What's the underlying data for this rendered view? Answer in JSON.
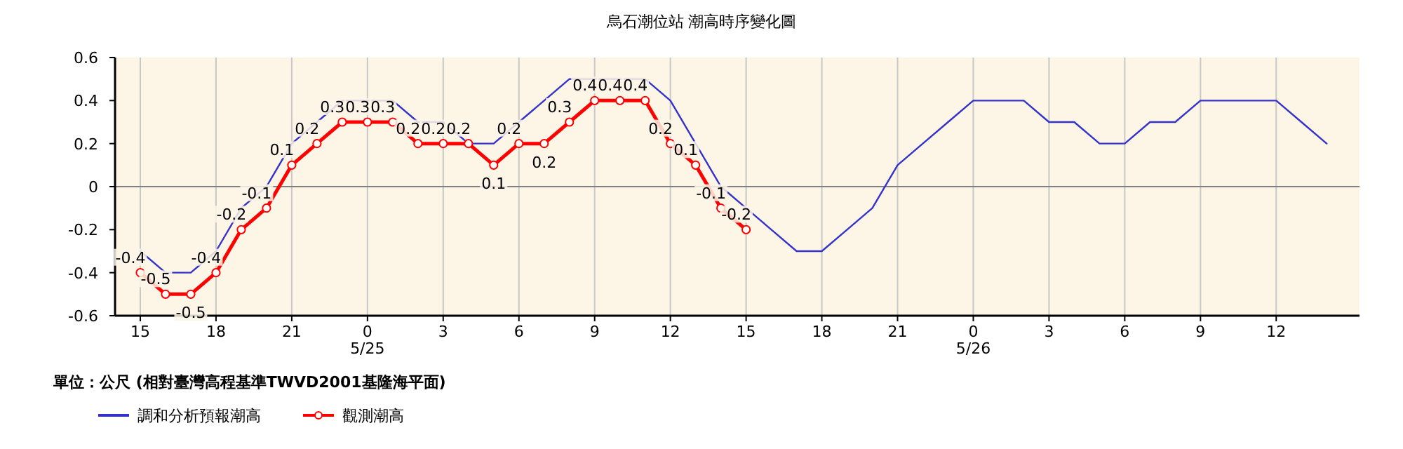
{
  "chart_data": {
    "type": "line",
    "title": "烏石潮位站 潮高時序變化圖",
    "annotations": [
      "單位：公尺 (相對臺灣高程基準TWVD2001基隆海平面)"
    ],
    "xlim": [
      "--05-24T14:00",
      "--05-26T15:18"
    ],
    "ylim": [
      -0.6,
      0.6
    ],
    "yticks": [
      -0.6,
      -0.4,
      -0.2,
      0,
      0.2,
      0.4,
      0.6
    ],
    "xticks": [
      {
        "value": "--05-24T15:00",
        "label": "15"
      },
      {
        "value": "--05-24T18:00",
        "label": "18"
      },
      {
        "value": "--05-24T21:00",
        "label": "21"
      },
      {
        "value": "--05-25T00:00",
        "label": "0\n5/25"
      },
      {
        "value": "--05-25T03:00",
        "label": "3"
      },
      {
        "value": "--05-25T06:00",
        "label": "6"
      },
      {
        "value": "--05-25T09:00",
        "label": "9"
      },
      {
        "value": "--05-25T12:00",
        "label": "12"
      },
      {
        "value": "--05-25T15:00",
        "label": "15"
      },
      {
        "value": "--05-25T18:00",
        "label": "18"
      },
      {
        "value": "--05-25T21:00",
        "label": "21"
      },
      {
        "value": "--05-26T00:00",
        "label": "0\n5/26"
      },
      {
        "value": "--05-26T03:00",
        "label": "3"
      },
      {
        "value": "--05-26T06:00",
        "label": "6"
      },
      {
        "value": "--05-26T09:00",
        "label": "9"
      },
      {
        "value": "--05-26T12:00",
        "label": "12"
      }
    ],
    "grid": "x",
    "legend": "bottom left",
    "ref_lines": [
      {
        "axis": "y",
        "value": 0,
        "color": "#808080"
      }
    ],
    "series": [
      {
        "name": "調和分析預報潮高",
        "color": "#3333cc",
        "marker": "none",
        "x": [
          "--05-24T15:00",
          "--05-24T16:00",
          "--05-24T17:00",
          "--05-24T18:00",
          "--05-24T19:00",
          "--05-24T20:00",
          "--05-24T21:00",
          "--05-24T22:00",
          "--05-24T23:00",
          "--05-25T00:00",
          "--05-25T01:00",
          "--05-25T02:00",
          "--05-25T03:00",
          "--05-25T04:00",
          "--05-25T05:00",
          "--05-25T06:00",
          "--05-25T07:00",
          "--05-25T08:00",
          "--05-25T09:00",
          "--05-25T10:00",
          "--05-25T11:00",
          "--05-25T12:00",
          "--05-25T13:00",
          "--05-25T14:00",
          "--05-25T15:00",
          "--05-25T16:00",
          "--05-25T17:00",
          "--05-25T18:00",
          "--05-25T19:00",
          "--05-25T20:00",
          "--05-25T21:00",
          "--05-25T22:00",
          "--05-25T23:00",
          "--05-26T00:00",
          "--05-26T01:00",
          "--05-26T02:00",
          "--05-26T03:00",
          "--05-26T04:00",
          "--05-26T05:00",
          "--05-26T06:00",
          "--05-26T07:00",
          "--05-26T08:00",
          "--05-26T09:00",
          "--05-26T10:00",
          "--05-26T11:00",
          "--05-26T12:00",
          "--05-26T13:00",
          "--05-26T14:00"
        ],
        "values": [
          -0.3,
          -0.4,
          -0.4,
          -0.3,
          -0.1,
          0,
          0.2,
          0.3,
          0.4,
          0.4,
          0.4,
          0.3,
          0.3,
          0.2,
          0.2,
          0.3,
          0.4,
          0.5,
          0.5,
          0.5,
          0.5,
          0.4,
          0.2,
          0,
          -0.1,
          -0.2,
          -0.3,
          -0.3,
          -0.2,
          -0.1,
          0.1,
          0.2,
          0.3,
          0.4,
          0.4,
          0.4,
          0.3,
          0.3,
          0.2,
          0.2,
          0.3,
          0.3,
          0.4,
          0.4,
          0.4,
          0.4,
          0.3,
          0.2
        ]
      },
      {
        "name": "觀測潮高",
        "color": "#ff0000",
        "marker": "circle",
        "x": [
          "--05-24T15:00",
          "--05-24T16:00",
          "--05-24T17:00",
          "--05-24T18:00",
          "--05-24T19:00",
          "--05-24T20:00",
          "--05-24T21:00",
          "--05-24T22:00",
          "--05-24T23:00",
          "--05-25T00:00",
          "--05-25T01:00",
          "--05-25T02:00",
          "--05-25T03:00",
          "--05-25T04:00",
          "--05-25T05:00",
          "--05-25T06:00",
          "--05-25T07:00",
          "--05-25T08:00",
          "--05-25T09:00",
          "--05-25T10:00",
          "--05-25T11:00",
          "--05-25T12:00",
          "--05-25T13:00",
          "--05-25T14:00",
          "--05-25T15:00"
        ],
        "values": [
          -0.4,
          -0.5,
          -0.5,
          -0.4,
          -0.2,
          -0.1,
          0.1,
          0.2,
          0.3,
          0.3,
          0.3,
          0.2,
          0.2,
          0.2,
          0.1,
          0.2,
          0.2,
          0.3,
          0.4,
          0.4,
          0.4,
          0.2,
          0.1,
          -0.1,
          -0.2
        ],
        "value_labels": [
          "-0.4",
          "-0.5",
          "-0.5",
          "-0.4",
          "-0.2",
          "-0.1",
          "0.1",
          "0.2",
          "0.3",
          "0.3",
          "0.3",
          "0.2",
          "0.2",
          "0.2",
          "0.1",
          "0.2",
          "0.2",
          "0.3",
          "0.4",
          "0.4",
          "0.4",
          "0.2",
          "0.1",
          "-0.1",
          "-0.2"
        ]
      }
    ]
  }
}
